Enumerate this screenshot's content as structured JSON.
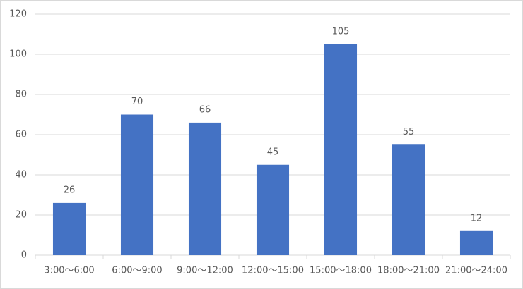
{
  "chart_data": {
    "type": "bar",
    "categories": [
      "3:00～6:00",
      "6:00～9:00",
      "9:00～12:00",
      "12:00～15:00",
      "15:00～18:00",
      "18:00～21:00",
      "21:00～24:00"
    ],
    "values": [
      26,
      70,
      66,
      45,
      105,
      55,
      12
    ],
    "color": "#4472c4",
    "ylim": [
      0,
      120
    ],
    "yticks": [
      0,
      20,
      40,
      60,
      80,
      100,
      120
    ],
    "grid": true
  }
}
